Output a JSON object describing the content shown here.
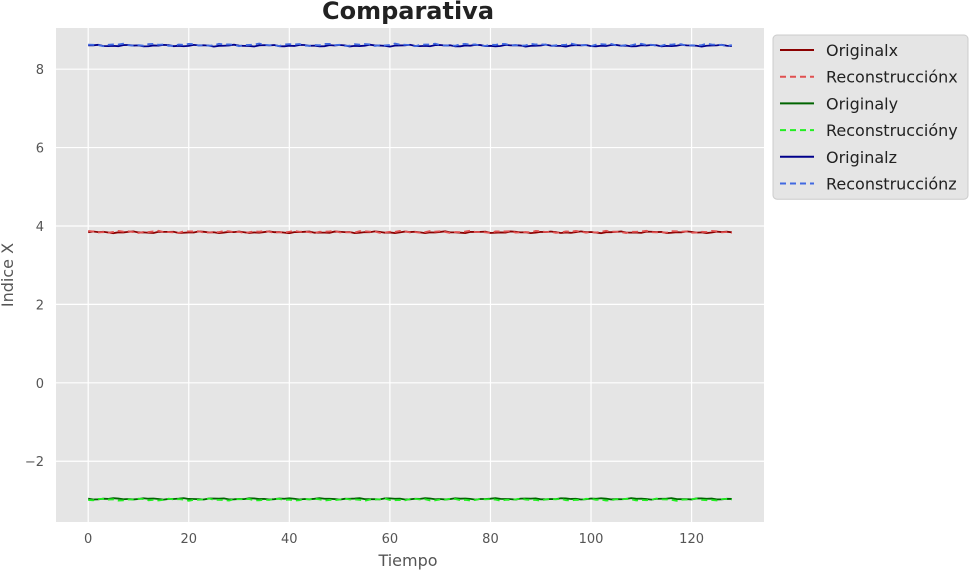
{
  "chart_data": {
    "type": "line",
    "title": "Comparativa",
    "xlabel": "Tiempo",
    "ylabel": "Indice X",
    "xlim": [
      -6.4,
      134.4
    ],
    "ylim": [
      -3.55,
      9.05
    ],
    "xticks": [
      0,
      20,
      40,
      60,
      80,
      100,
      120
    ],
    "yticks": [
      -2,
      0,
      2,
      4,
      6,
      8
    ],
    "ytick_labels": [
      "−2",
      "0",
      "2",
      "4",
      "6",
      "8"
    ],
    "grid": true,
    "background": "#e5e5e5",
    "legend_position": "outside-top-right",
    "n_points": 129,
    "series": [
      {
        "name": "Originalx",
        "color": "#8b0000",
        "style": "solid",
        "level": 3.84,
        "amplitude": 0.025
      },
      {
        "name": "Reconstrucciónx",
        "color": "#e05050",
        "style": "dashed",
        "level": 3.85,
        "amplitude": 0.03
      },
      {
        "name": "Originaly",
        "color": "#006400",
        "style": "solid",
        "level": -2.96,
        "amplitude": 0.02
      },
      {
        "name": "Reconstruccióny",
        "color": "#22ee22",
        "style": "dashed",
        "level": -2.98,
        "amplitude": 0.03
      },
      {
        "name": "Originalz",
        "color": "#00008b",
        "style": "solid",
        "level": 8.6,
        "amplitude": 0.025
      },
      {
        "name": "Reconstrucciónz",
        "color": "#4169e1",
        "style": "dashed",
        "level": 8.62,
        "amplitude": 0.035
      }
    ]
  }
}
